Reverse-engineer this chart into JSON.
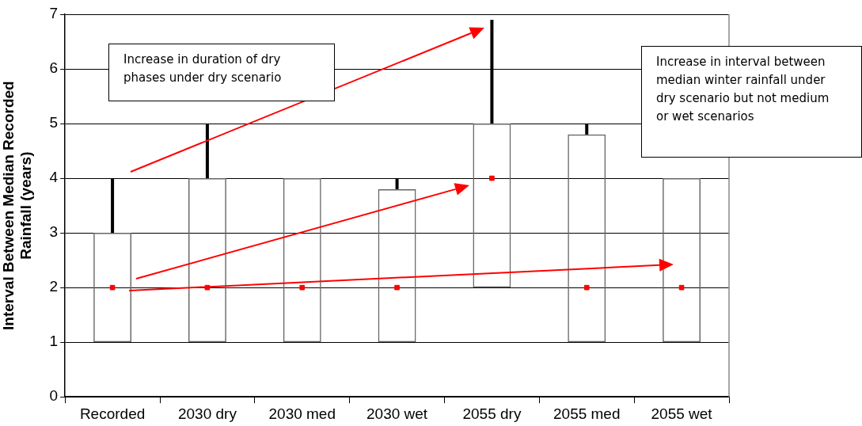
{
  "chart_data": {
    "type": "box",
    "ylabel": "Interval Between Median Recorded Rainfall (years)",
    "categories": [
      "Recorded",
      "2030 dry",
      "2030 med",
      "2030 wet",
      "2055 dry",
      "2055 med",
      "2055 wet"
    ],
    "boxes": [
      {
        "low": 1,
        "q1": 1,
        "median": 2,
        "q3": 3,
        "high": 4
      },
      {
        "low": 1,
        "q1": 1,
        "median": 2,
        "q3": 4,
        "high": 5
      },
      {
        "low": 1,
        "q1": 1,
        "median": 2,
        "q3": 4,
        "high": 4
      },
      {
        "low": 1,
        "q1": 1,
        "median": 2,
        "q3": 3.8,
        "high": 4
      },
      {
        "low": 2,
        "q1": 2,
        "median": 4,
        "q3": 5,
        "high": 6.9
      },
      {
        "low": 1,
        "q1": 1,
        "median": 2,
        "q3": 4.8,
        "high": 5
      },
      {
        "low": 1,
        "q1": 1,
        "median": 2,
        "q3": 4,
        "high": 4
      }
    ],
    "ylim": [
      0,
      7
    ],
    "yticks": [
      0,
      1,
      2,
      3,
      4,
      5,
      6,
      7
    ],
    "grid": "y",
    "legend": false,
    "marker": "square",
    "annotations": [
      "Increase in duration of dry phases under dry scenario",
      "Increase in interval between median winter rainfall under dry scenario but not medium or wet scenarios"
    ]
  }
}
